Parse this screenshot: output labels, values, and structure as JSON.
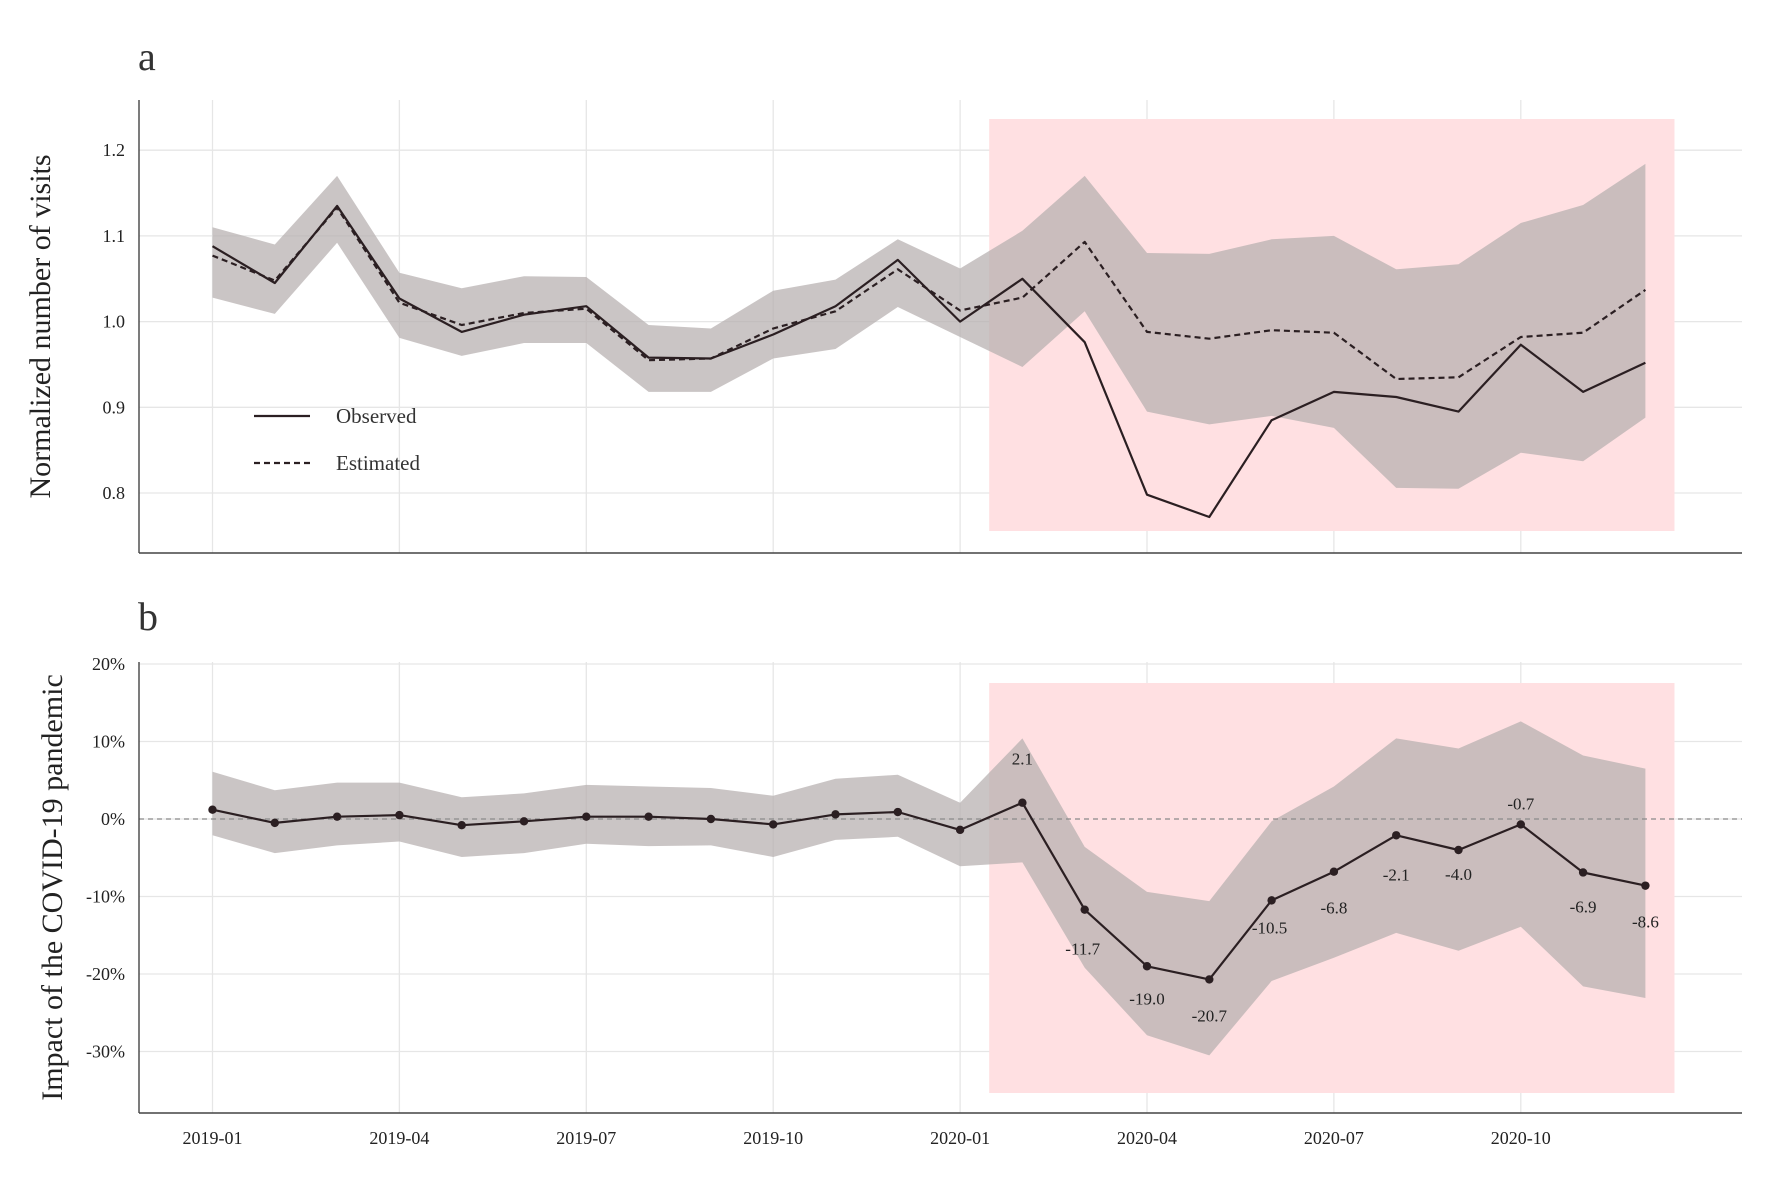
{
  "chart_data": [
    {
      "panel": "a",
      "type": "line",
      "ylabel": "Normalized number of visits",
      "xlabel": "",
      "x_ticks": [
        "2019-01",
        "2019-04",
        "2019-07",
        "2019-10",
        "2020-01",
        "2020-04",
        "2020-07",
        "2020-10"
      ],
      "y_ticks": [
        "0.8",
        "0.9",
        "1.0",
        "1.1",
        "1.2"
      ],
      "ylim": [
        0.73,
        1.26
      ],
      "grid": true,
      "legend_position": "left, lower",
      "x": [
        "2019-01",
        "2019-02",
        "2019-03",
        "2019-04",
        "2019-05",
        "2019-06",
        "2019-07",
        "2019-08",
        "2019-09",
        "2019-10",
        "2019-11",
        "2019-12",
        "2020-01",
        "2020-02",
        "2020-03",
        "2020-04",
        "2020-05",
        "2020-06",
        "2020-07",
        "2020-08",
        "2020-09",
        "2020-10",
        "2020-11",
        "2020-12"
      ],
      "series": [
        {
          "name": "Observed",
          "style": "solid",
          "values": [
            1.088,
            1.045,
            1.135,
            1.027,
            0.988,
            1.008,
            1.018,
            0.958,
            0.957,
            0.985,
            1.018,
            1.072,
            1.0,
            1.05,
            0.976,
            0.798,
            0.772,
            0.885,
            0.918,
            0.912,
            0.895,
            0.973,
            0.918,
            0.952
          ]
        },
        {
          "name": "Estimated",
          "style": "dashed",
          "values": [
            1.077,
            1.048,
            1.133,
            1.022,
            0.996,
            1.01,
            1.015,
            0.955,
            0.957,
            0.992,
            1.012,
            1.061,
            1.013,
            1.028,
            1.093,
            0.988,
            0.98,
            0.99,
            0.987,
            0.933,
            0.935,
            0.982,
            0.987,
            1.037
          ]
        }
      ],
      "band_upper": [
        1.11,
        1.09,
        1.17,
        1.057,
        1.039,
        1.053,
        1.052,
        0.996,
        0.992,
        1.036,
        1.049,
        1.096,
        1.062,
        1.106,
        1.17,
        1.08,
        1.079,
        1.096,
        1.1,
        1.061,
        1.067,
        1.115,
        1.136,
        1.184
      ],
      "band_lower": [
        1.028,
        1.009,
        1.092,
        0.981,
        0.96,
        0.975,
        0.975,
        0.918,
        0.918,
        0.957,
        0.968,
        1.017,
        0.982,
        0.947,
        1.012,
        0.895,
        0.88,
        0.89,
        0.876,
        0.806,
        0.805,
        0.847,
        0.837,
        0.888
      ],
      "highlight_range": [
        "2020-01-15",
        "2020-12-15"
      ]
    },
    {
      "panel": "b",
      "type": "line",
      "ylabel": "Impact of the COVID-19 pandemic",
      "xlabel": "",
      "x_ticks": [
        "2019-01",
        "2019-04",
        "2019-07",
        "2019-10",
        "2020-01",
        "2020-04",
        "2020-07",
        "2020-10"
      ],
      "y_ticks": [
        "-30%",
        "-20%",
        "-10%",
        "0%",
        "10%",
        "20%"
      ],
      "ylim": [
        -38,
        20
      ],
      "grid": true,
      "reference_line": 0,
      "x": [
        "2019-01",
        "2019-02",
        "2019-03",
        "2019-04",
        "2019-05",
        "2019-06",
        "2019-07",
        "2019-08",
        "2019-09",
        "2019-10",
        "2019-11",
        "2019-12",
        "2020-01",
        "2020-02",
        "2020-03",
        "2020-04",
        "2020-05",
        "2020-06",
        "2020-07",
        "2020-08",
        "2020-09",
        "2020-10",
        "2020-11",
        "2020-12"
      ],
      "series": [
        {
          "name": "Impact",
          "values": [
            1.2,
            -0.5,
            0.3,
            0.5,
            -0.8,
            -0.3,
            0.3,
            0.3,
            0.0,
            -0.7,
            0.6,
            0.9,
            -1.4,
            2.1,
            -11.7,
            -19.0,
            -20.7,
            -10.5,
            -6.8,
            -2.1,
            -4.0,
            -0.7,
            -6.9,
            -8.6
          ]
        }
      ],
      "band_upper": [
        6.1,
        3.7,
        4.7,
        4.7,
        2.8,
        3.3,
        4.4,
        4.2,
        4.0,
        3.0,
        5.2,
        5.7,
        2.1,
        10.4,
        -3.6,
        -9.4,
        -10.6,
        -0.3,
        4.2,
        10.4,
        9.1,
        12.6,
        8.2,
        6.5
      ],
      "band_lower": [
        -2.1,
        -4.4,
        -3.4,
        -2.9,
        -4.9,
        -4.4,
        -3.2,
        -3.5,
        -3.4,
        -4.9,
        -2.7,
        -2.3,
        -6.1,
        -5.6,
        -19.2,
        -27.9,
        -30.5,
        -20.9,
        -17.9,
        -14.7,
        -17.0,
        -13.9,
        -21.6,
        -23.1
      ],
      "annotations": [
        "2.1",
        "-11.7",
        "-19.0",
        "-20.7",
        "-10.5",
        "-6.8",
        "-2.1",
        "-4.0",
        "-0.7",
        "-6.9",
        "-8.6"
      ],
      "highlight_range": [
        "2020-01-15",
        "2020-12-15"
      ]
    }
  ],
  "labels": {
    "panel_a": "a",
    "panel_b": "b"
  },
  "colors": {
    "band": "#b5aeae",
    "highlight": "#ffe0e2",
    "line": "#2b1f22",
    "grid": "#e6e6e6",
    "axis": "#444444"
  }
}
